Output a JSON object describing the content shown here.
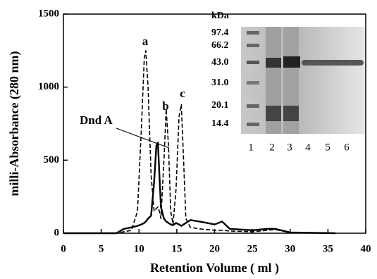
{
  "chart_data": {
    "type": "line",
    "xlabel": "Retention Volume ( ml )",
    "ylabel": "milli-Absorbance (280 nm)",
    "x": [
      0,
      5,
      7,
      8,
      9,
      9.8,
      10.3,
      10.7,
      10.9,
      11.2,
      11.6,
      12.0,
      12.3,
      12.5,
      12.7,
      12.9,
      13.3,
      13.6,
      13.9,
      14.2,
      14.5,
      14.9,
      15.3,
      15.6,
      15.9,
      16.2,
      16.8,
      18,
      19,
      20,
      21,
      22,
      25,
      27,
      28,
      30,
      36
    ],
    "series": [
      {
        "color": "#000000",
        "dash": true,
        "values": [
          0,
          0,
          0,
          10,
          20,
          150,
          700,
          1200,
          1250,
          1000,
          400,
          150,
          170,
          180,
          150,
          100,
          500,
          850,
          600,
          150,
          60,
          300,
          800,
          880,
          500,
          100,
          40,
          30,
          25,
          20,
          20,
          15,
          10,
          20,
          25,
          5,
          0
        ]
      },
      {
        "color": "#000000",
        "dash": false,
        "values": [
          0,
          0,
          0,
          30,
          40,
          50,
          60,
          70,
          80,
          100,
          120,
          350,
          600,
          620,
          400,
          180,
          100,
          80,
          70,
          60,
          55,
          70,
          60,
          50,
          60,
          70,
          90,
          80,
          70,
          60,
          80,
          30,
          20,
          30,
          30,
          5,
          0
        ]
      }
    ],
    "xlim": [
      0,
      40
    ],
    "xticks": [
      0,
      5,
      10,
      15,
      20,
      25,
      30,
      35,
      40
    ],
    "ylim": [
      0,
      1500
    ],
    "yticks": [
      0,
      500,
      1000,
      1500
    ],
    "annotations": [
      "a",
      "b",
      "c",
      "Dnd A"
    ],
    "inset": {
      "unit_label": "kDa",
      "markers": [
        "97.4",
        "66.2",
        "43.0",
        "31.0",
        "20.1",
        "14.4"
      ],
      "lanes": [
        "1",
        "2",
        "3",
        "4",
        "5",
        "6"
      ]
    }
  }
}
